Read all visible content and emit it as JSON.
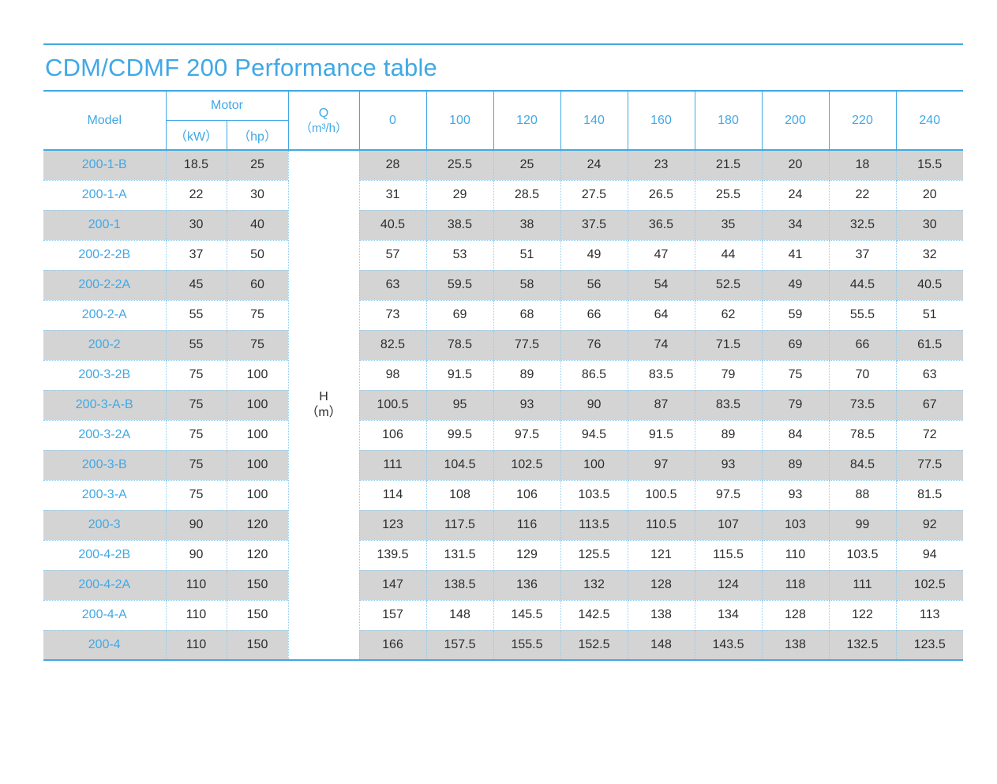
{
  "title": "CDM/CDMF 200 Performance table",
  "colors": {
    "accent": "#41a8e5",
    "dotted_border": "#8ecbf0",
    "row_gray": "#d4d4d4",
    "text_dark": "#2d2d2d"
  },
  "table": {
    "header": {
      "model_label": "Model",
      "motor_label": "Motor",
      "motor_units": [
        "（kW）",
        "（hp）"
      ],
      "q_label_line1": "Q",
      "q_label_line2": "（m³/h）",
      "flow_values": [
        "0",
        "100",
        "120",
        "140",
        "160",
        "180",
        "200",
        "220",
        "240"
      ]
    },
    "h_cell": {
      "line1": "H",
      "line2": "（m）"
    },
    "rows": [
      {
        "model": "200-1-B",
        "kw": "18.5",
        "hp": "25",
        "h": [
          "28",
          "25.5",
          "25",
          "24",
          "23",
          "21.5",
          "20",
          "18",
          "15.5"
        ]
      },
      {
        "model": "200-1-A",
        "kw": "22",
        "hp": "30",
        "h": [
          "31",
          "29",
          "28.5",
          "27.5",
          "26.5",
          "25.5",
          "24",
          "22",
          "20"
        ]
      },
      {
        "model": "200-1",
        "kw": "30",
        "hp": "40",
        "h": [
          "40.5",
          "38.5",
          "38",
          "37.5",
          "36.5",
          "35",
          "34",
          "32.5",
          "30"
        ]
      },
      {
        "model": "200-2-2B",
        "kw": "37",
        "hp": "50",
        "h": [
          "57",
          "53",
          "51",
          "49",
          "47",
          "44",
          "41",
          "37",
          "32"
        ]
      },
      {
        "model": "200-2-2A",
        "kw": "45",
        "hp": "60",
        "h": [
          "63",
          "59.5",
          "58",
          "56",
          "54",
          "52.5",
          "49",
          "44.5",
          "40.5"
        ]
      },
      {
        "model": "200-2-A",
        "kw": "55",
        "hp": "75",
        "h": [
          "73",
          "69",
          "68",
          "66",
          "64",
          "62",
          "59",
          "55.5",
          "51"
        ]
      },
      {
        "model": "200-2",
        "kw": "55",
        "hp": "75",
        "h": [
          "82.5",
          "78.5",
          "77.5",
          "76",
          "74",
          "71.5",
          "69",
          "66",
          "61.5"
        ]
      },
      {
        "model": "200-3-2B",
        "kw": "75",
        "hp": "100",
        "h": [
          "98",
          "91.5",
          "89",
          "86.5",
          "83.5",
          "79",
          "75",
          "70",
          "63"
        ]
      },
      {
        "model": "200-3-A-B",
        "kw": "75",
        "hp": "100",
        "h": [
          "100.5",
          "95",
          "93",
          "90",
          "87",
          "83.5",
          "79",
          "73.5",
          "67"
        ]
      },
      {
        "model": "200-3-2A",
        "kw": "75",
        "hp": "100",
        "h": [
          "106",
          "99.5",
          "97.5",
          "94.5",
          "91.5",
          "89",
          "84",
          "78.5",
          "72"
        ]
      },
      {
        "model": "200-3-B",
        "kw": "75",
        "hp": "100",
        "h": [
          "111",
          "104.5",
          "102.5",
          "100",
          "97",
          "93",
          "89",
          "84.5",
          "77.5"
        ]
      },
      {
        "model": "200-3-A",
        "kw": "75",
        "hp": "100",
        "h": [
          "114",
          "108",
          "106",
          "103.5",
          "100.5",
          "97.5",
          "93",
          "88",
          "81.5"
        ]
      },
      {
        "model": "200-3",
        "kw": "90",
        "hp": "120",
        "h": [
          "123",
          "117.5",
          "116",
          "113.5",
          "110.5",
          "107",
          "103",
          "99",
          "92"
        ]
      },
      {
        "model": "200-4-2B",
        "kw": "90",
        "hp": "120",
        "h": [
          "139.5",
          "131.5",
          "129",
          "125.5",
          "121",
          "115.5",
          "110",
          "103.5",
          "94"
        ]
      },
      {
        "model": "200-4-2A",
        "kw": "110",
        "hp": "150",
        "h": [
          "147",
          "138.5",
          "136",
          "132",
          "128",
          "124",
          "118",
          "111",
          "102.5"
        ]
      },
      {
        "model": "200-4-A",
        "kw": "110",
        "hp": "150",
        "h": [
          "157",
          "148",
          "145.5",
          "142.5",
          "138",
          "134",
          "128",
          "122",
          "113"
        ]
      },
      {
        "model": "200-4",
        "kw": "110",
        "hp": "150",
        "h": [
          "166",
          "157.5",
          "155.5",
          "152.5",
          "148",
          "143.5",
          "138",
          "132.5",
          "123.5"
        ]
      }
    ]
  }
}
